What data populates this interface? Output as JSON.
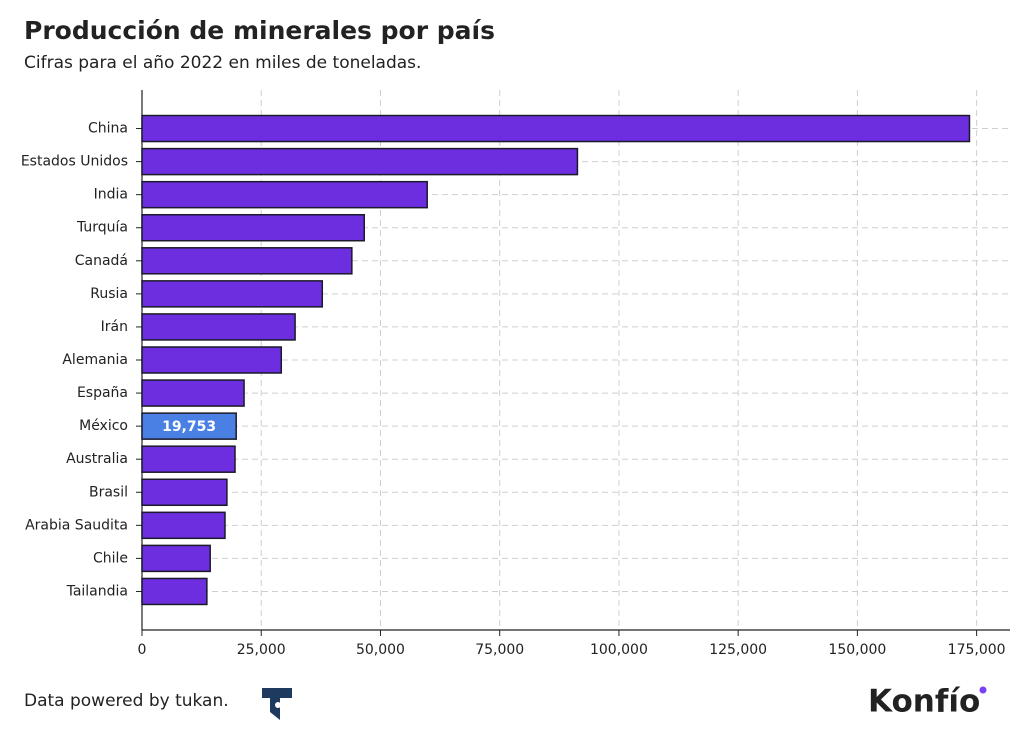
{
  "chart_data": {
    "type": "bar",
    "orientation": "horizontal",
    "title": "Producción de minerales por país",
    "subtitle": "Cifras para el año 2022 en miles de toneladas.",
    "categories": [
      "China",
      "Estados Unidos",
      "India",
      "Turquía",
      "Canadá",
      "Rusia",
      "Irán",
      "Alemania",
      "España",
      "México",
      "Australia",
      "Brasil",
      "Arabia Saudita",
      "Chile",
      "Tailandia"
    ],
    "values": [
      173500,
      91300,
      59800,
      46600,
      44000,
      37800,
      32100,
      29200,
      21400,
      19753,
      19500,
      17800,
      17400,
      14300,
      13600
    ],
    "value_labels": [
      null,
      null,
      null,
      null,
      null,
      null,
      null,
      null,
      null,
      "19,753",
      null,
      null,
      null,
      null,
      null
    ],
    "colors": [
      "#6d2ee0",
      "#6d2ee0",
      "#6d2ee0",
      "#6d2ee0",
      "#6d2ee0",
      "#6d2ee0",
      "#6d2ee0",
      "#6d2ee0",
      "#6d2ee0",
      "#4a80e3",
      "#6d2ee0",
      "#6d2ee0",
      "#6d2ee0",
      "#6d2ee0",
      "#6d2ee0"
    ],
    "xlim": [
      0,
      182000
    ],
    "xticks": [
      0,
      {
        "value": 25000,
        "label": "25,000"
      },
      {
        "value": 50000,
        "label": "50,000"
      },
      {
        "value": 75000,
        "label": "75,000"
      },
      {
        "value": 100000,
        "label": "100,000"
      },
      {
        "value": 125000,
        "label": "125,000"
      },
      {
        "value": 150000,
        "label": "150,000"
      },
      {
        "value": 175000,
        "label": "175,000"
      }
    ],
    "grid": true
  },
  "footer": {
    "source": "Data powered by tukan.",
    "brand": "Konfío"
  }
}
